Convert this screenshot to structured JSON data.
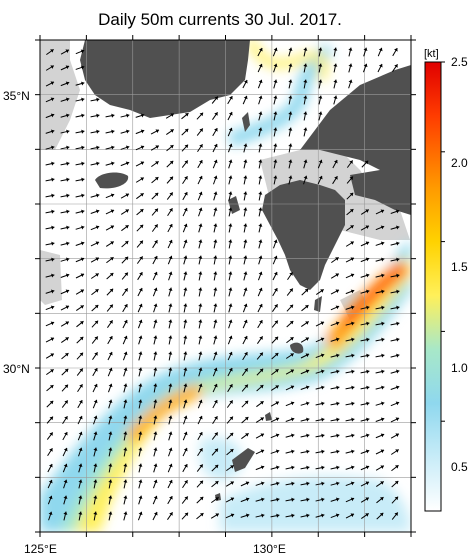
{
  "title": "Daily 50m currents 30 Jul. 2017.",
  "map": {
    "lon_range": [
      125,
      133
    ],
    "lat_range": [
      27,
      36
    ],
    "grid_lons": [
      125,
      126,
      127,
      128,
      129,
      130,
      131,
      132,
      133
    ],
    "grid_lats": [
      27,
      28,
      29,
      30,
      31,
      32,
      33,
      34,
      35,
      36
    ],
    "lat_labels": [
      {
        "value": 35,
        "text": "35°N"
      },
      {
        "value": 30,
        "text": "30°N"
      }
    ],
    "lon_labels": [
      {
        "value": 125,
        "text": "125°E"
      },
      {
        "value": 130,
        "text": "130°E"
      }
    ],
    "colors": {
      "land": "#505050",
      "shelf_gray": "#d3d3d3",
      "background": "#ffffff",
      "arrow": "#000000",
      "grid": "#9a9a9a"
    }
  },
  "colorbar": {
    "unit": "[kt]",
    "range": [
      0,
      2.5
    ],
    "ticks": [
      {
        "value": 0.5,
        "label": "0.5"
      },
      {
        "value": 1.0,
        "label": "1.0"
      },
      {
        "value": 1.5,
        "label": "1.5"
      },
      {
        "value": 2.0,
        "label": "2.0"
      },
      {
        "value": 2.5,
        "label": "2.5"
      }
    ],
    "stops": [
      {
        "value": 0.0,
        "color": "#ffffff"
      },
      {
        "value": 0.3,
        "color": "#c8ecf8"
      },
      {
        "value": 0.6,
        "color": "#8fd8ee"
      },
      {
        "value": 0.9,
        "color": "#a8e8c8"
      },
      {
        "value": 1.2,
        "color": "#fff05a"
      },
      {
        "value": 1.5,
        "color": "#ffd200"
      },
      {
        "value": 1.8,
        "color": "#ff9a00"
      },
      {
        "value": 2.2,
        "color": "#ff3c00"
      },
      {
        "value": 2.5,
        "color": "#e00000"
      }
    ]
  }
}
